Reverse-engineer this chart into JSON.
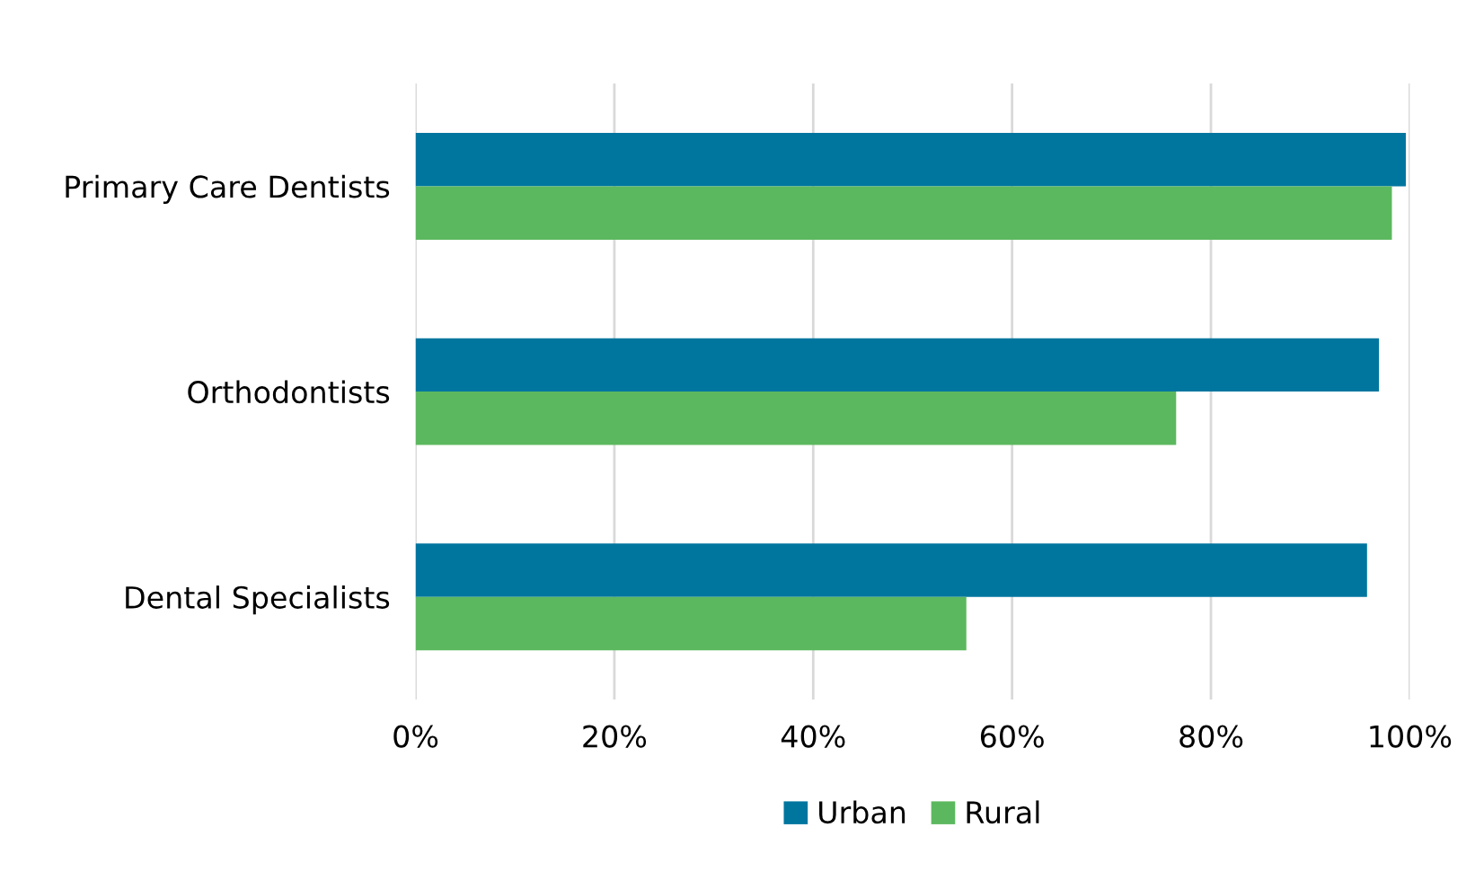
{
  "chart_data": {
    "type": "bar",
    "orientation": "horizontal",
    "categories": [
      "Primary Care Dentists",
      "Orthodontists",
      "Dental Specialists"
    ],
    "series": [
      {
        "name": "Urban",
        "color": "#00769f",
        "values": [
          99.6,
          96.9,
          95.7
        ]
      },
      {
        "name": "Rural",
        "color": "#5cb85f",
        "values": [
          98.2,
          76.5,
          55.4
        ]
      }
    ],
    "xlim": [
      0,
      100
    ],
    "xticks": [
      {
        "value": 0,
        "label": "0%"
      },
      {
        "value": 20,
        "label": "20%"
      },
      {
        "value": 40,
        "label": "40%"
      },
      {
        "value": 60,
        "label": "60%"
      },
      {
        "value": 80,
        "label": "80%"
      },
      {
        "value": 100,
        "label": "100%"
      }
    ],
    "grid": "x",
    "legend": "bottom"
  }
}
